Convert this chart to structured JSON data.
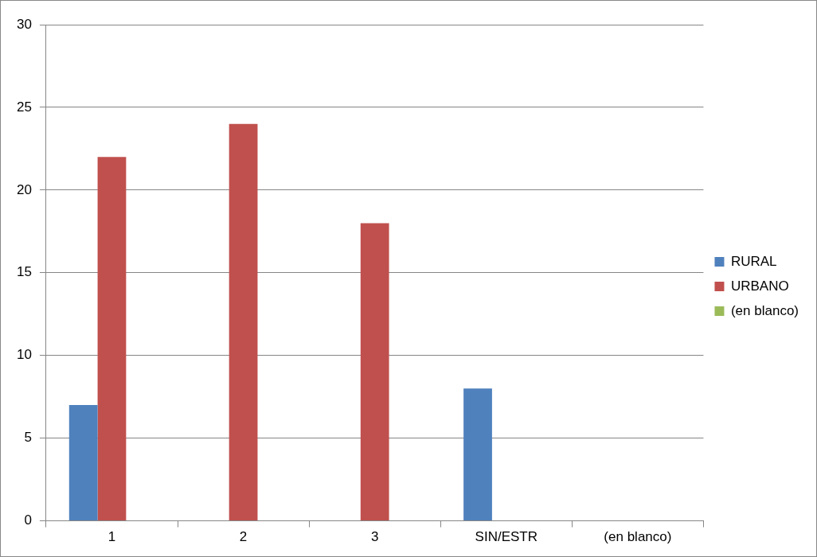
{
  "chart_data": {
    "type": "bar",
    "categories": [
      "1",
      "2",
      "3",
      "SIN/ESTR",
      "(en blanco)"
    ],
    "series": [
      {
        "name": "RURAL",
        "color": "#4f81bd",
        "values": [
          7,
          null,
          null,
          8,
          null
        ]
      },
      {
        "name": "URBANO",
        "color": "#c0504d",
        "values": [
          22,
          24,
          18,
          null,
          null
        ]
      },
      {
        "name": "(en blanco)",
        "color": "#9bbb59",
        "values": [
          null,
          null,
          null,
          null,
          null
        ]
      }
    ],
    "ylim": [
      0,
      30
    ],
    "yticks": [
      0,
      5,
      10,
      15,
      20,
      25,
      30
    ],
    "grid": "y",
    "legend": "right"
  }
}
